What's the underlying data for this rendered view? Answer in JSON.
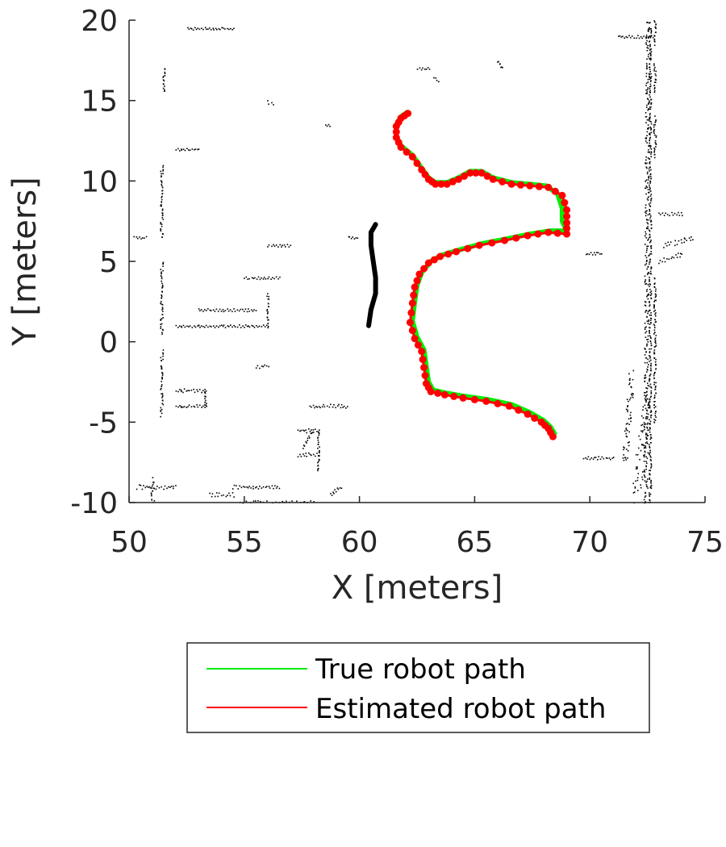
{
  "chart_data": {
    "type": "line",
    "title": "",
    "xlabel": "X [meters]",
    "ylabel": "Y [meters]",
    "xlim": [
      50,
      75
    ],
    "ylim": [
      -10,
      20
    ],
    "xticks": [
      "50",
      "55",
      "60",
      "65",
      "70",
      "75"
    ],
    "yticks": [
      "20",
      "15",
      "10",
      "5",
      "0",
      "-5",
      "-10"
    ],
    "grid": false,
    "legend": {
      "placement": "below",
      "entries": [
        "True robot path",
        "Estimated robot path"
      ]
    },
    "colors": {
      "true_path": "#00ee00",
      "estimated_path": "#ff0000",
      "map": "#000000",
      "axis": "#262626"
    },
    "series": [
      {
        "name": "True robot path",
        "x": [
          68.5,
          68.3,
          68.0,
          67.4,
          66.6,
          65.6,
          64.6,
          63.8,
          63.2,
          63.0,
          62.9,
          62.8,
          62.5,
          62.3,
          62.4,
          62.5,
          62.7,
          63.1,
          63.6,
          64.3,
          65.3,
          66.4,
          67.4,
          68.3,
          69.0,
          68.8,
          68.8,
          68.6,
          68.1,
          67.4,
          66.6,
          65.8,
          65.3,
          64.8,
          64.3,
          63.8,
          63.3,
          63.0,
          62.7,
          62.3,
          61.8,
          61.6,
          61.6,
          61.8,
          62.1
        ],
        "y": [
          -5.8,
          -5.3,
          -4.9,
          -4.4,
          -3.9,
          -3.6,
          -3.4,
          -3.2,
          -3.0,
          -2.5,
          -1.5,
          -0.5,
          0.3,
          1.3,
          2.5,
          3.5,
          4.3,
          5.0,
          5.4,
          5.7,
          6.1,
          6.4,
          6.7,
          6.9,
          6.9,
          7.5,
          8.3,
          9.2,
          9.7,
          9.8,
          9.9,
          10.2,
          10.6,
          10.6,
          10.2,
          9.9,
          9.9,
          10.2,
          10.8,
          11.6,
          12.2,
          12.8,
          13.5,
          14.0,
          14.3
        ]
      },
      {
        "name": "Estimated robot path",
        "x": [
          68.4,
          68.2,
          67.9,
          67.3,
          66.5,
          65.5,
          64.5,
          63.7,
          63.1,
          62.9,
          62.8,
          62.7,
          62.4,
          62.2,
          62.3,
          62.4,
          62.6,
          63.0,
          63.5,
          64.2,
          65.2,
          66.3,
          67.3,
          68.2,
          69.0,
          69.0,
          69.0,
          68.8,
          68.2,
          67.4,
          66.6,
          65.8,
          65.3,
          64.8,
          64.3,
          63.8,
          63.3,
          63.0,
          62.7,
          62.3,
          61.8,
          61.6,
          61.6,
          61.8,
          62.1
        ],
        "y": [
          -5.9,
          -5.4,
          -5.0,
          -4.5,
          -4.0,
          -3.7,
          -3.5,
          -3.3,
          -3.1,
          -2.6,
          -1.6,
          -0.6,
          0.2,
          1.2,
          2.4,
          3.4,
          4.2,
          4.9,
          5.3,
          5.6,
          6.0,
          6.3,
          6.6,
          6.8,
          6.7,
          7.4,
          8.2,
          9.1,
          9.6,
          9.7,
          9.8,
          10.1,
          10.5,
          10.5,
          10.1,
          9.8,
          9.8,
          10.1,
          10.7,
          11.5,
          12.1,
          12.7,
          13.4,
          13.9,
          14.2
        ]
      }
    ]
  }
}
